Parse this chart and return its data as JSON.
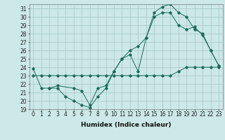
{
  "xlabel": "Humidex (Indice chaleur)",
  "xlim": [
    -0.5,
    23.5
  ],
  "ylim": [
    19,
    31.5
  ],
  "yticks": [
    19,
    20,
    21,
    22,
    23,
    24,
    25,
    26,
    27,
    28,
    29,
    30,
    31
  ],
  "xticks": [
    0,
    1,
    2,
    3,
    4,
    5,
    6,
    7,
    8,
    9,
    10,
    11,
    12,
    13,
    14,
    15,
    16,
    17,
    18,
    19,
    20,
    21,
    22,
    23
  ],
  "bg_color": "#cce8e8",
  "grid_color": "#aacccc",
  "line_color": "#1a6b5a",
  "line1_x": [
    0,
    1,
    2,
    3,
    4,
    5,
    6,
    7,
    8,
    9,
    10,
    11,
    12,
    13,
    14,
    15,
    16,
    17,
    18,
    19,
    20,
    21,
    22,
    23
  ],
  "line1_y": [
    23.0,
    23.0,
    23.0,
    23.0,
    23.0,
    23.0,
    23.0,
    23.0,
    23.0,
    23.0,
    23.0,
    23.0,
    23.0,
    23.0,
    23.0,
    23.0,
    23.0,
    23.0,
    23.5,
    24.0,
    24.0,
    24.0,
    24.0,
    24.0
  ],
  "line2_x": [
    0,
    1,
    2,
    3,
    4,
    5,
    6,
    7,
    8,
    9,
    10,
    11,
    12,
    13,
    14,
    15,
    16,
    17,
    18,
    19,
    20,
    21,
    22,
    23
  ],
  "line2_y": [
    23.8,
    21.5,
    21.5,
    21.5,
    20.5,
    20.0,
    19.5,
    19.2,
    20.5,
    21.5,
    23.5,
    25.0,
    25.5,
    23.5,
    27.5,
    30.5,
    31.2,
    31.5,
    30.5,
    30.0,
    28.5,
    28.0,
    26.0,
    24.2
  ],
  "line3_x": [
    2,
    3,
    5,
    6,
    7,
    8,
    9,
    10,
    11,
    12,
    13,
    14,
    15,
    16,
    17,
    18,
    19,
    20,
    21,
    22,
    23
  ],
  "line3_y": [
    21.5,
    21.8,
    21.5,
    21.2,
    19.5,
    21.5,
    21.8,
    23.5,
    25.0,
    26.0,
    26.5,
    27.5,
    30.0,
    30.5,
    30.5,
    29.0,
    28.5,
    28.8,
    27.8,
    26.0,
    24.2
  ],
  "tick_fontsize": 5.5,
  "xlabel_fontsize": 6.5
}
